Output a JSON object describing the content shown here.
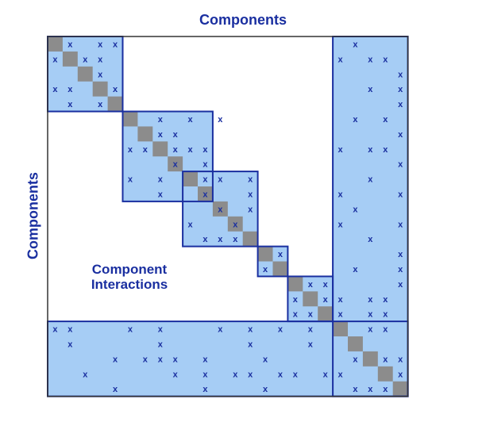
{
  "title_top": "Components",
  "title_left": "Components",
  "region_label": {
    "line1": "Component",
    "line2": "Interactions"
  },
  "mark_symbol": "x",
  "colors": {
    "border": "#1a2fa0",
    "fill": "#a6cdf5",
    "diagonal": "#8c8c8c",
    "mark": "#1a2fa0",
    "background": "#ffffff"
  },
  "matrix_size": 24,
  "module_blocks": [
    {
      "name": "module-1",
      "start": 0,
      "end": 4
    },
    {
      "name": "module-2",
      "start": 5,
      "end": 10
    },
    {
      "name": "module-3",
      "start": 9,
      "end": 13
    },
    {
      "name": "module-4",
      "start": 14,
      "end": 15
    },
    {
      "name": "module-5",
      "start": 16,
      "end": 18
    }
  ],
  "integrative_components": {
    "start": 19,
    "end": 23
  },
  "marks": [
    [
      0,
      1
    ],
    [
      0,
      3
    ],
    [
      0,
      4
    ],
    [
      1,
      0
    ],
    [
      1,
      2
    ],
    [
      1,
      3
    ],
    [
      2,
      3
    ],
    [
      3,
      0
    ],
    [
      3,
      1
    ],
    [
      3,
      4
    ],
    [
      4,
      1
    ],
    [
      4,
      3
    ],
    [
      5,
      7
    ],
    [
      5,
      9
    ],
    [
      5,
      11
    ],
    [
      6,
      7
    ],
    [
      6,
      8
    ],
    [
      7,
      5
    ],
    [
      7,
      6
    ],
    [
      7,
      8
    ],
    [
      7,
      9
    ],
    [
      7,
      10
    ],
    [
      8,
      8
    ],
    [
      8,
      10
    ],
    [
      9,
      5
    ],
    [
      9,
      7
    ],
    [
      9,
      10
    ],
    [
      9,
      11
    ],
    [
      9,
      13
    ],
    [
      10,
      7
    ],
    [
      10,
      10
    ],
    [
      10,
      13
    ],
    [
      11,
      11
    ],
    [
      11,
      13
    ],
    [
      12,
      9
    ],
    [
      12,
      12
    ],
    [
      13,
      10
    ],
    [
      13,
      11
    ],
    [
      13,
      12
    ],
    [
      14,
      15
    ],
    [
      15,
      14
    ],
    [
      16,
      17
    ],
    [
      16,
      18
    ],
    [
      17,
      16
    ],
    [
      17,
      18
    ],
    [
      18,
      16
    ],
    [
      18,
      17
    ],
    [
      0,
      20
    ],
    [
      1,
      19
    ],
    [
      1,
      21
    ],
    [
      1,
      22
    ],
    [
      2,
      23
    ],
    [
      3,
      21
    ],
    [
      3,
      23
    ],
    [
      4,
      23
    ],
    [
      5,
      20
    ],
    [
      5,
      22
    ],
    [
      6,
      23
    ],
    [
      7,
      19
    ],
    [
      7,
      21
    ],
    [
      7,
      22
    ],
    [
      8,
      23
    ],
    [
      9,
      21
    ],
    [
      10,
      19
    ],
    [
      10,
      23
    ],
    [
      11,
      20
    ],
    [
      12,
      19
    ],
    [
      12,
      23
    ],
    [
      13,
      21
    ],
    [
      14,
      23
    ],
    [
      15,
      20
    ],
    [
      15,
      23
    ],
    [
      16,
      23
    ],
    [
      17,
      19
    ],
    [
      17,
      21
    ],
    [
      17,
      22
    ],
    [
      18,
      19
    ],
    [
      18,
      21
    ],
    [
      18,
      22
    ],
    [
      19,
      0
    ],
    [
      19,
      1
    ],
    [
      19,
      5
    ],
    [
      19,
      7
    ],
    [
      19,
      11
    ],
    [
      19,
      13
    ],
    [
      19,
      15
    ],
    [
      19,
      17
    ],
    [
      19,
      21
    ],
    [
      19,
      22
    ],
    [
      20,
      1
    ],
    [
      20,
      7
    ],
    [
      20,
      13
    ],
    [
      20,
      17
    ],
    [
      21,
      4
    ],
    [
      21,
      6
    ],
    [
      21,
      7
    ],
    [
      21,
      8
    ],
    [
      21,
      10
    ],
    [
      21,
      14
    ],
    [
      21,
      20
    ],
    [
      21,
      22
    ],
    [
      21,
      23
    ],
    [
      22,
      2
    ],
    [
      22,
      8
    ],
    [
      22,
      10
    ],
    [
      22,
      12
    ],
    [
      22,
      13
    ],
    [
      22,
      15
    ],
    [
      22,
      16
    ],
    [
      22,
      18
    ],
    [
      22,
      19
    ],
    [
      22,
      23
    ],
    [
      23,
      4
    ],
    [
      23,
      10
    ],
    [
      23,
      14
    ],
    [
      23,
      20
    ],
    [
      23,
      21
    ],
    [
      23,
      22
    ]
  ]
}
